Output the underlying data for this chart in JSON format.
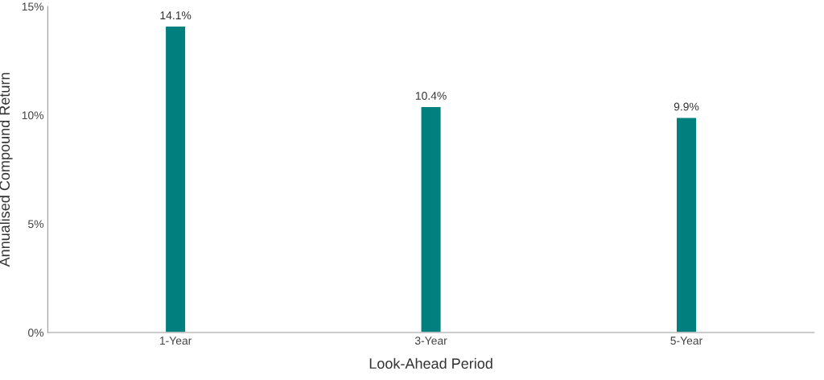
{
  "chart_data": {
    "type": "bar",
    "xlabel": "Look-Ahead Period",
    "ylabel": "Annualised Compound Return",
    "categories": [
      "1-Year",
      "3-Year",
      "5-Year"
    ],
    "values": [
      14.1,
      10.4,
      9.9
    ],
    "value_labels": [
      "14.1%",
      "10.4%",
      "9.9%"
    ],
    "color": "#007f7f",
    "ylim": [
      0,
      15
    ],
    "yticks": [
      {
        "value": 0,
        "label": "0%"
      },
      {
        "value": 5,
        "label": "5%"
      },
      {
        "value": 10,
        "label": "10%"
      },
      {
        "value": 15,
        "label": "15%"
      }
    ],
    "grid": false
  }
}
